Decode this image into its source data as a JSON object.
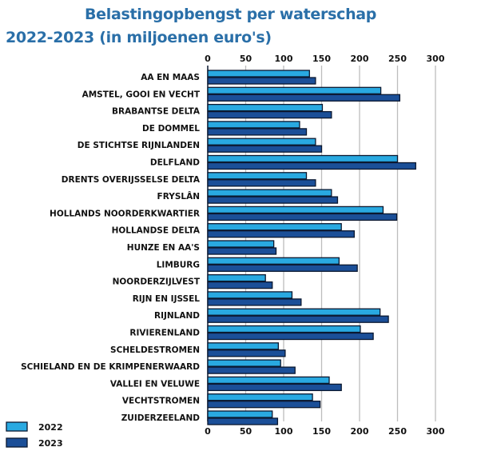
{
  "chart_data": {
    "type": "bar",
    "orientation": "horizontal",
    "title": "Belastingopbengst per waterschap",
    "subtitle": "2022-2023 (in miljoenen euro's)",
    "categories": [
      "AA EN MAAS",
      "AMSTEL, GOOI EN VECHT",
      "BRABANTSE DELTA",
      "DE DOMMEL",
      "DE STICHTSE RIJNLANDEN",
      "DELFLAND",
      "DRENTS OVERIJSSELSE DELTA",
      "FRYSLÂN",
      "HOLLANDS NOORDERKWARTIER",
      "HOLLANDSE DELTA",
      "HUNZE EN AA'S",
      "LIMBURG",
      "NOORDERZIJLVEST",
      "RIJN EN IJSSEL",
      "RIJNLAND",
      "RIVIERENLAND",
      "SCHELDESTROMEN",
      "SCHIELAND EN DE KRIMPENERWAARD",
      "VALLEI EN VELUWE",
      "VECHTSTROMEN",
      "ZUIDERZEELAND"
    ],
    "series": [
      {
        "name": "2022",
        "color": "#29a9e1",
        "values": [
          134,
          228,
          151,
          121,
          142,
          250,
          130,
          163,
          231,
          176,
          87,
          173,
          76,
          111,
          227,
          201,
          93,
          96,
          160,
          138,
          85
        ]
      },
      {
        "name": "2023",
        "color": "#1b4f98",
        "values": [
          142,
          253,
          163,
          130,
          150,
          274,
          142,
          171,
          249,
          193,
          90,
          197,
          85,
          123,
          238,
          218,
          102,
          115,
          176,
          148,
          92
        ]
      }
    ],
    "xlim": [
      0,
      300
    ],
    "xticks": [
      "0",
      "50",
      "100",
      "150",
      "200",
      "250",
      "300"
    ],
    "grid": true,
    "axis_labels_position": "top and bottom",
    "legend_position": "bottom-left",
    "outline_color": "#0b1830"
  }
}
